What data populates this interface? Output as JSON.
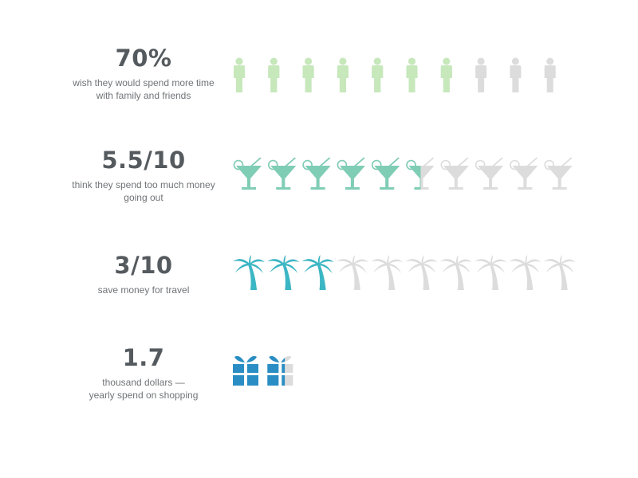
{
  "colors": {
    "value_text": "#555a5e",
    "desc_text": "#707477",
    "inactive": "#dcdcdc"
  },
  "rows": [
    {
      "value": "70%",
      "description_lines": [
        "wish they would spend more time",
        "with family and friends"
      ],
      "icon": "person-icon",
      "color": "#c6e8bb"
    },
    {
      "value": "5.5/10",
      "description_lines": [
        "think they spend too much money",
        "going out"
      ],
      "icon": "cocktail-icon",
      "color": "#7fcdb5"
    },
    {
      "value": "3/10",
      "description_lines": [
        "save money for travel"
      ],
      "icon": "palm-tree-icon",
      "color": "#3bb6c4"
    },
    {
      "value": "1.7",
      "description_lines": [
        "thousand dollars —",
        "yearly spend on shopping"
      ],
      "icon": "gift-icon",
      "color": "#2a8ec4"
    }
  ],
  "chart_data": {
    "type": "pictogram",
    "series": [
      {
        "name": "wish they would spend more time with family and friends",
        "value": 7,
        "max": 10,
        "icon": "person-icon",
        "color": "#c6e8bb"
      },
      {
        "name": "think they spend too much money going out",
        "value": 5.5,
        "max": 10,
        "icon": "cocktail-icon",
        "color": "#7fcdb5"
      },
      {
        "name": "save money for travel",
        "value": 3,
        "max": 10,
        "icon": "palm-tree-icon",
        "color": "#3bb6c4"
      },
      {
        "name": "thousand dollars — yearly spend on shopping",
        "value": 1.7,
        "max": 2,
        "icon": "gift-icon",
        "color": "#2a8ec4"
      }
    ]
  }
}
